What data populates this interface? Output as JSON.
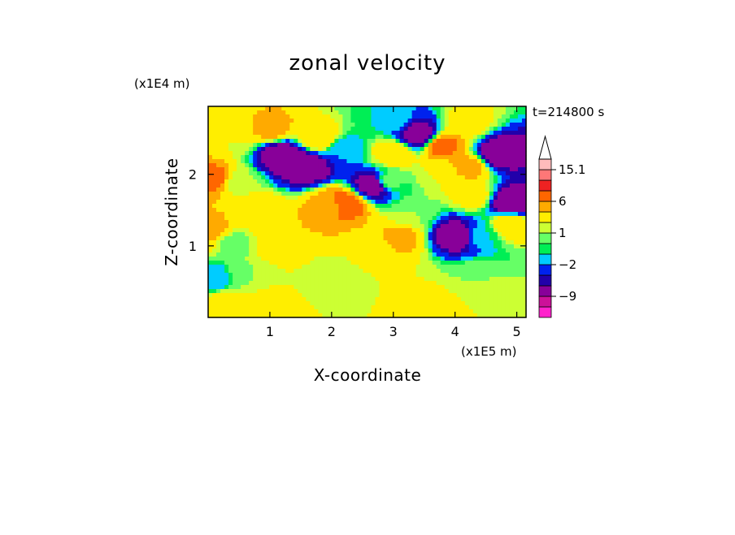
{
  "chart_data": {
    "type": "heatmap",
    "title": "zonal velocity",
    "xlabel": "X-coordinate",
    "ylabel": "Z-coordinate",
    "x_unit": "(x1E5 m)",
    "y_unit": "(x1E4 m)",
    "time_label": "t=214800 s",
    "xlim": [
      0,
      5.15
    ],
    "ylim": [
      0,
      2.95
    ],
    "xticks": [
      1,
      2,
      3,
      4,
      5
    ],
    "xtick_labels": [
      "1",
      "2",
      "3",
      "4",
      "5"
    ],
    "yticks": [
      1,
      2
    ],
    "ytick_labels": [
      "1",
      "2"
    ],
    "colorbar": {
      "levels": [
        -15,
        -12,
        -9,
        -6,
        -4,
        -2,
        -1,
        0,
        1,
        2,
        4,
        6,
        9,
        12,
        15.1
      ],
      "colors": [
        "#ff22cc",
        "#cc1199",
        "#880099",
        "#2200aa",
        "#0022ee",
        "#00ccff",
        "#00ee55",
        "#66ff66",
        "#ccff33",
        "#ffee00",
        "#ffaa00",
        "#ff6600",
        "#ee2222",
        "#ff7777",
        "#ffbbbb"
      ],
      "tick_labels": [
        {
          "value": -9,
          "label": "−9"
        },
        {
          "value": -2,
          "label": "−2"
        },
        {
          "value": 1,
          "label": "1"
        },
        {
          "value": 6,
          "label": "6"
        },
        {
          "value": 15.1,
          "label": "15.1"
        }
      ],
      "extend": "max"
    },
    "features": [
      {
        "x": 0.3,
        "z": 0.2,
        "value": 3
      },
      {
        "x": 1.0,
        "z": 0.15,
        "value": 3
      },
      {
        "x": 2.2,
        "z": 0.12,
        "value": 2
      },
      {
        "x": 3.6,
        "z": 0.18,
        "value": 3
      },
      {
        "x": 4.7,
        "z": 0.15,
        "value": 2
      },
      {
        "x": 0.6,
        "z": 0.6,
        "value": 1
      },
      {
        "x": 2.0,
        "z": 0.55,
        "value": 1
      },
      {
        "x": 3.2,
        "z": 0.6,
        "value": 2
      },
      {
        "x": 4.3,
        "z": 0.55,
        "value": 1
      },
      {
        "x": 0.1,
        "z": 0.55,
        "value": -2
      },
      {
        "x": 1.2,
        "z": 1.05,
        "value": 4
      },
      {
        "x": 2.7,
        "z": 1.0,
        "value": 3
      },
      {
        "x": 0.4,
        "z": 1.05,
        "value": 0.5
      },
      {
        "x": 0.05,
        "z": 1.2,
        "value": 5
      },
      {
        "x": 3.1,
        "z": 1.1,
        "value": 5
      },
      {
        "x": 4.4,
        "z": 1.15,
        "value": -1
      },
      {
        "x": 4.05,
        "z": 1.15,
        "value": -9
      },
      {
        "x": 3.3,
        "z": 1.45,
        "value": 1
      },
      {
        "x": 0.8,
        "z": 1.5,
        "value": 4
      },
      {
        "x": 2.0,
        "z": 1.55,
        "value": 5
      },
      {
        "x": 2.2,
        "z": 1.58,
        "value": 8
      },
      {
        "x": 4.9,
        "z": 1.3,
        "value": 4
      },
      {
        "x": 0.5,
        "z": 1.9,
        "value": 1
      },
      {
        "x": 2.9,
        "z": 1.9,
        "value": 1
      },
      {
        "x": 0.1,
        "z": 1.95,
        "value": 7
      },
      {
        "x": 4.3,
        "z": 1.7,
        "value": 3
      },
      {
        "x": 1.2,
        "z": 2.25,
        "value": -9
      },
      {
        "x": 1.6,
        "z": 2.1,
        "value": -9
      },
      {
        "x": 2.7,
        "z": 1.85,
        "value": -9
      },
      {
        "x": 3.4,
        "z": 2.55,
        "value": -9
      },
      {
        "x": 4.7,
        "z": 2.3,
        "value": -9
      },
      {
        "x": 4.9,
        "z": 1.6,
        "value": -9
      },
      {
        "x": 0.4,
        "z": 2.5,
        "value": 2
      },
      {
        "x": 1.0,
        "z": 2.65,
        "value": 5
      },
      {
        "x": 1.8,
        "z": 2.5,
        "value": 4
      },
      {
        "x": 2.2,
        "z": 2.35,
        "value": -2
      },
      {
        "x": 3.0,
        "z": 2.3,
        "value": 4
      },
      {
        "x": 3.8,
        "z": 2.4,
        "value": 7
      },
      {
        "x": 3.0,
        "z": 2.75,
        "value": -1
      },
      {
        "x": 4.2,
        "z": 2.7,
        "value": 3
      },
      {
        "x": 0.3,
        "z": 2.85,
        "value": 3
      },
      {
        "x": 3.8,
        "z": 2.0,
        "value": 2
      },
      {
        "x": 4.2,
        "z": 2.1,
        "value": 5
      }
    ]
  }
}
